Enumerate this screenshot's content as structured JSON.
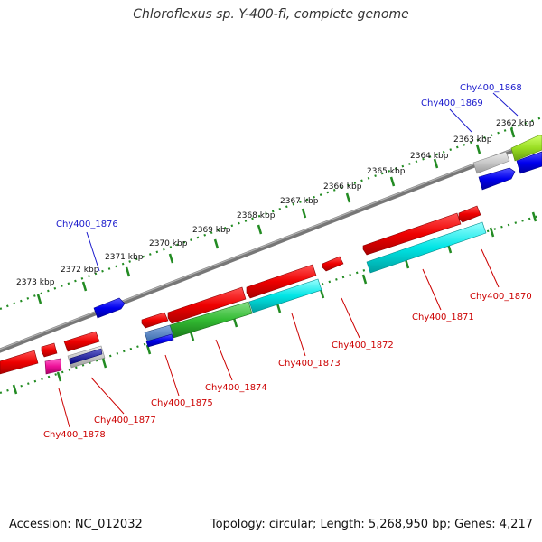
{
  "title": "Chloroflexus sp. Y-400-fl, complete genome",
  "footer": {
    "accession": "Accession: NC_012032",
    "summary": "Topology: circular; Length: 5,268,950 bp; Genes: 4,217"
  },
  "colors": {
    "backbone": "#808080",
    "ticks": "#228b22",
    "label_blue": "#1a1acc",
    "label_red": "#cc0000"
  },
  "kbp_labels": [
    "2362 kbp",
    "2363 kbp",
    "2364 kbp",
    "2365 kbp",
    "2366 kbp",
    "2367 kbp",
    "2368 kbp",
    "2369 kbp",
    "2370 kbp",
    "2371 kbp",
    "2372 kbp",
    "2373 kbp"
  ],
  "gene_labels_top": [
    "Chy400_1868",
    "Chy400_1869",
    "Chy400_1876"
  ],
  "gene_labels_bottom": [
    "Chy400_1870",
    "Chy400_1871",
    "Chy400_1872",
    "Chy400_1873",
    "Chy400_1874",
    "Chy400_1875",
    "Chy400_1877",
    "Chy400_1878"
  ]
}
